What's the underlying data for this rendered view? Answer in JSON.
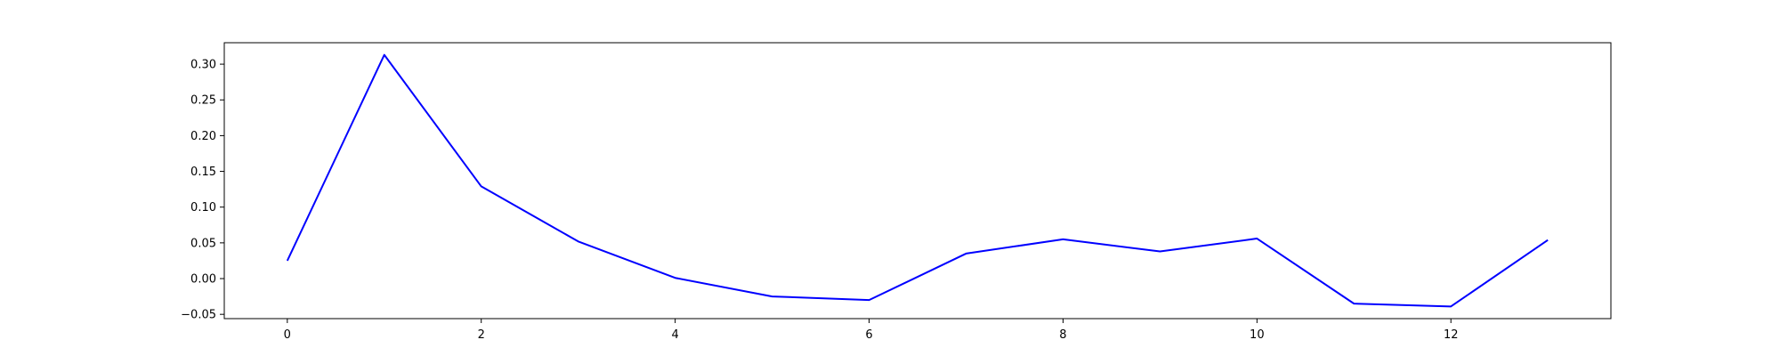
{
  "chart_data": {
    "type": "line",
    "title": "",
    "xlabel": "",
    "ylabel": "",
    "x": [
      0,
      1,
      2,
      3,
      4,
      5,
      6,
      7,
      8,
      9,
      10,
      11,
      12,
      13
    ],
    "series": [
      {
        "values": [
          0.025,
          0.313,
          0.129,
          0.052,
          0.001,
          -0.025,
          -0.03,
          0.035,
          0.055,
          0.038,
          0.056,
          -0.035,
          -0.039,
          0.054
        ],
        "color": "#0000ff"
      }
    ],
    "xlim": [
      -0.65,
      13.65
    ],
    "ylim": [
      -0.056,
      0.33
    ],
    "xticks": [
      0,
      2,
      4,
      6,
      8,
      10,
      12
    ],
    "xtick_labels": [
      "0",
      "2",
      "4",
      "6",
      "8",
      "10",
      "12"
    ],
    "yticks": [
      -0.05,
      0.0,
      0.05,
      0.1,
      0.15,
      0.2,
      0.25,
      0.3
    ],
    "ytick_labels": [
      "−0.05",
      "0.00",
      "0.05",
      "0.10",
      "0.15",
      "0.20",
      "0.25",
      "0.30"
    ],
    "grid": false,
    "legend": "none"
  }
}
